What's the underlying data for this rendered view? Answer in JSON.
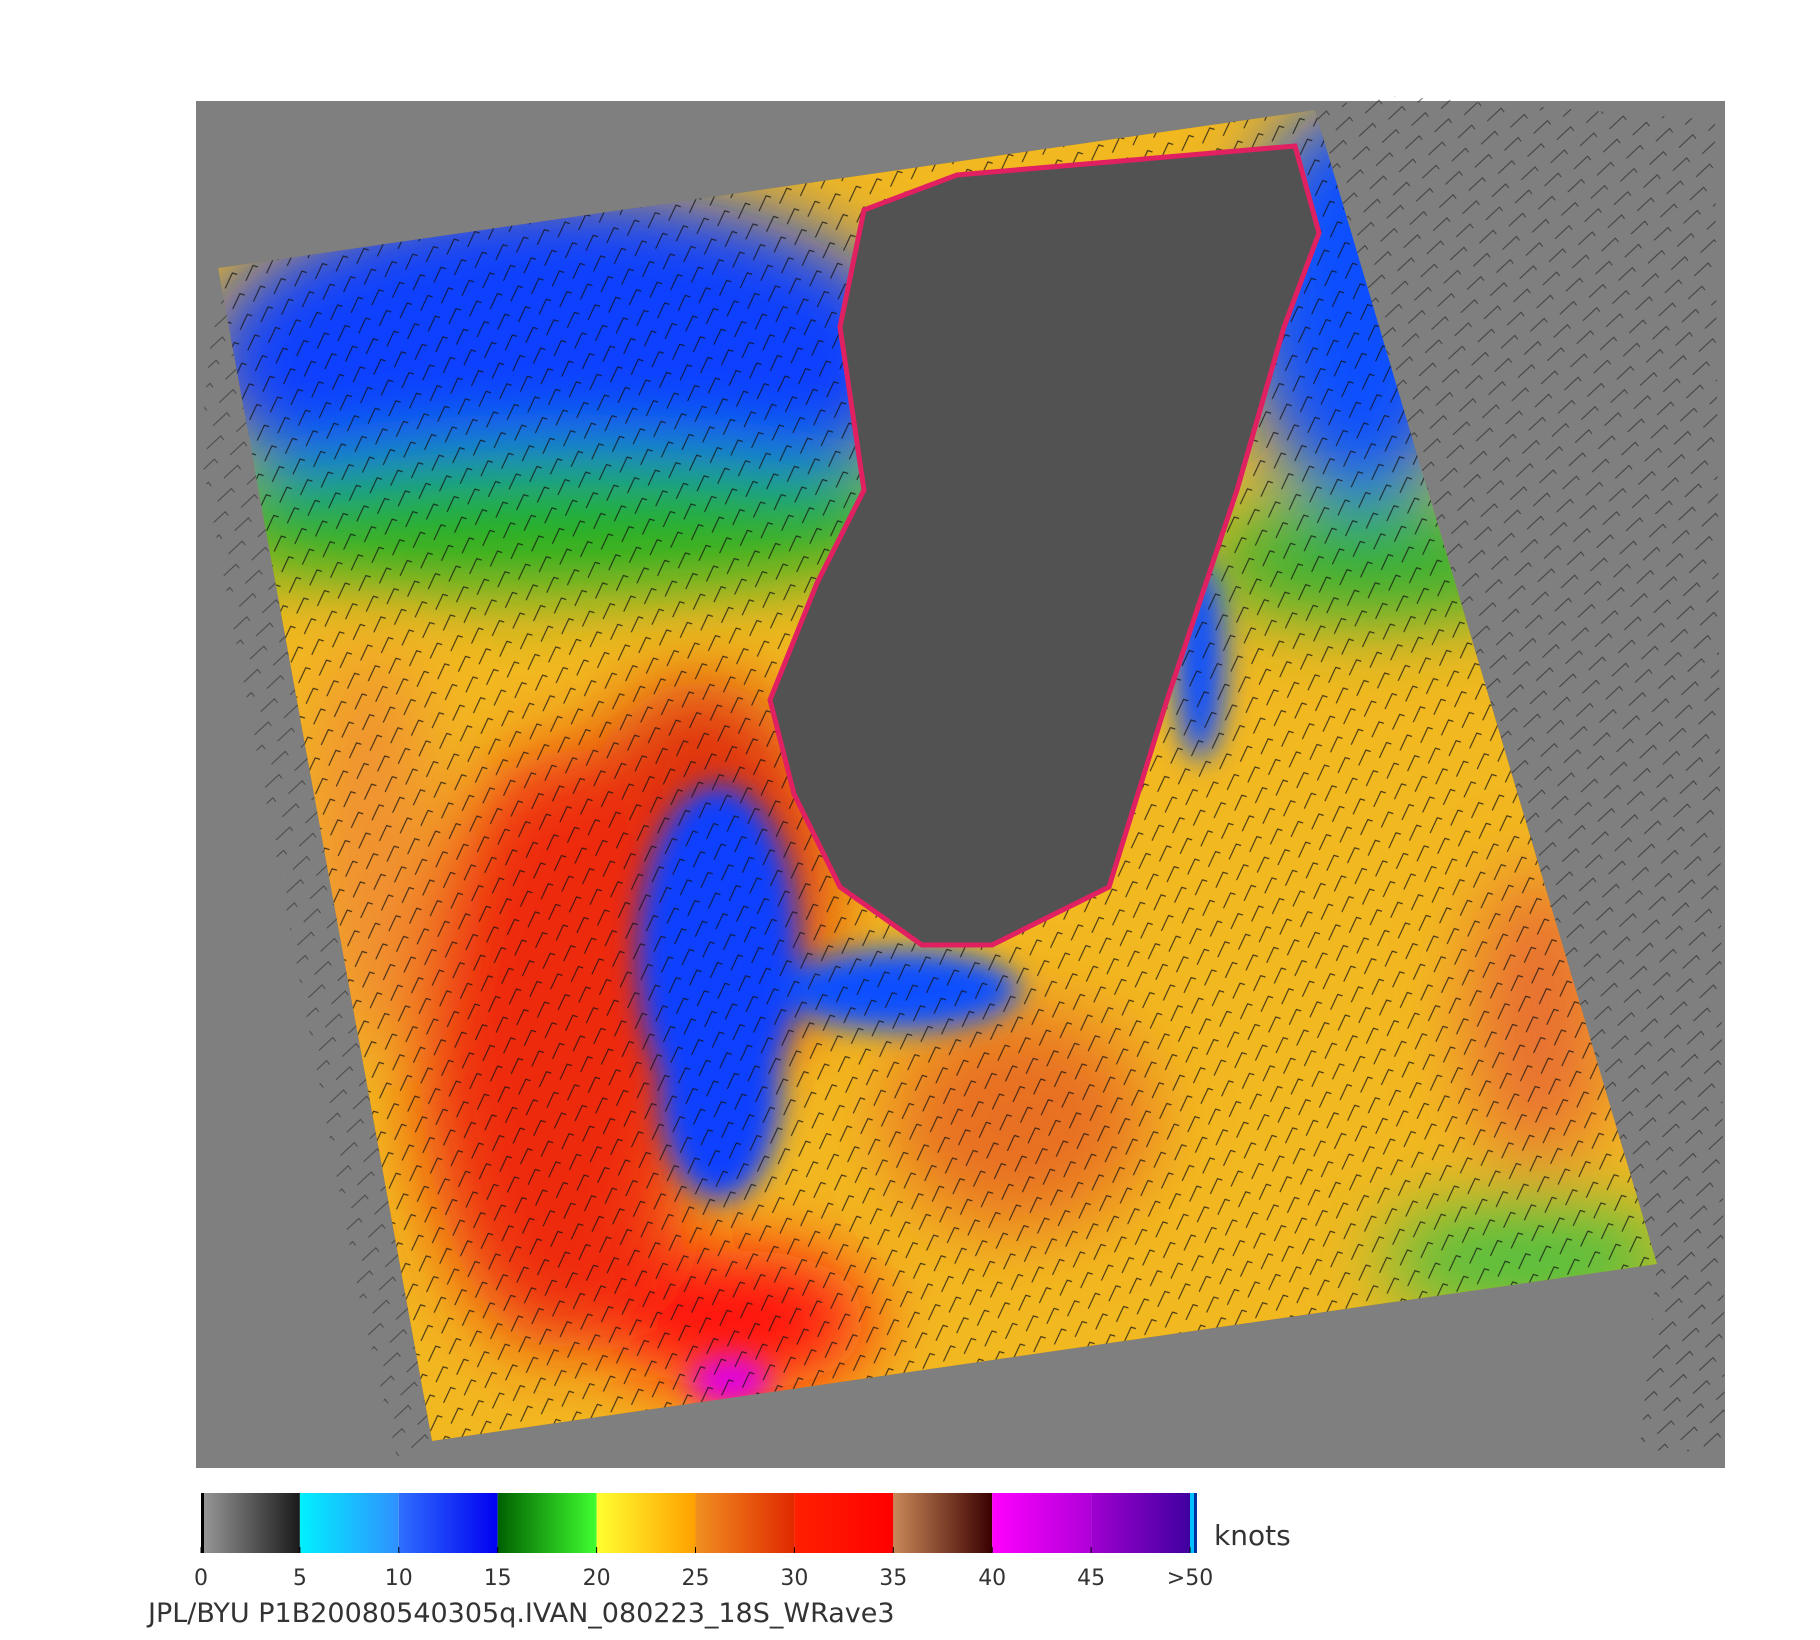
{
  "colorbar": {
    "ticks": [
      0,
      5,
      10,
      15,
      20,
      25,
      30,
      35,
      40,
      45,
      {
        "value": 50,
        "label": ">50"
      }
    ],
    "colors": [
      [
        "#999999",
        "#1a1a1a"
      ],
      [
        "#00f0ff",
        "#3090ff"
      ],
      [
        "#2f6fff",
        "#0000f0"
      ],
      [
        "#006000",
        "#40ff30"
      ],
      [
        "#ffff30",
        "#ffa000"
      ],
      [
        "#f09020",
        "#e02800"
      ],
      [
        "#ff2000",
        "#ff0000"
      ],
      [
        "#c88858",
        "#3a0000"
      ],
      [
        "#ff00ff",
        "#b000d8"
      ],
      [
        "#a000d0",
        "#4000a0"
      ]
    ],
    "unit": "knots"
  },
  "footer": "JPL/BYU  P1B20080540305q.IVAN_080223_18S_WRave3"
}
